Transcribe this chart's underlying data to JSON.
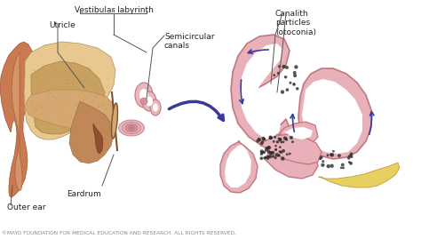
{
  "bg_color": "#ffffff",
  "figsize": [
    4.74,
    2.69
  ],
  "dpi": 100,
  "labels": {
    "vestibular_labyrinth": "Vestibular labyrinth",
    "utricle": "Utricle",
    "semicircular_canals": "Semicircular\ncanals",
    "eardrum": "Eardrum",
    "outer_ear": "Outer ear",
    "canalith": "Canalith\nparticles\n(otoconia)"
  },
  "copyright": "©MAYO FOUNDATION FOR MEDICAL EDUCATION AND RESEARCH. ALL RIGHTS RESERVED.",
  "ear_outer_color": "#c97a50",
  "ear_mid_color": "#d4956a",
  "ear_inner_light": "#e8c890",
  "ear_inner_mid": "#d4a860",
  "ear_inner_dark": "#b88840",
  "canal_pink": "#d4909a",
  "canal_pink_light": "#e8b8c0",
  "right_canal_color": "#d4909a",
  "right_canal_light": "#e8b0b8",
  "right_canal_dark": "#c07880",
  "yellow_color": "#e8d060",
  "arrow_color": "#3a3a9a",
  "label_fontsize": 6.5,
  "copyright_fontsize": 4.2,
  "line_color": "#555555"
}
